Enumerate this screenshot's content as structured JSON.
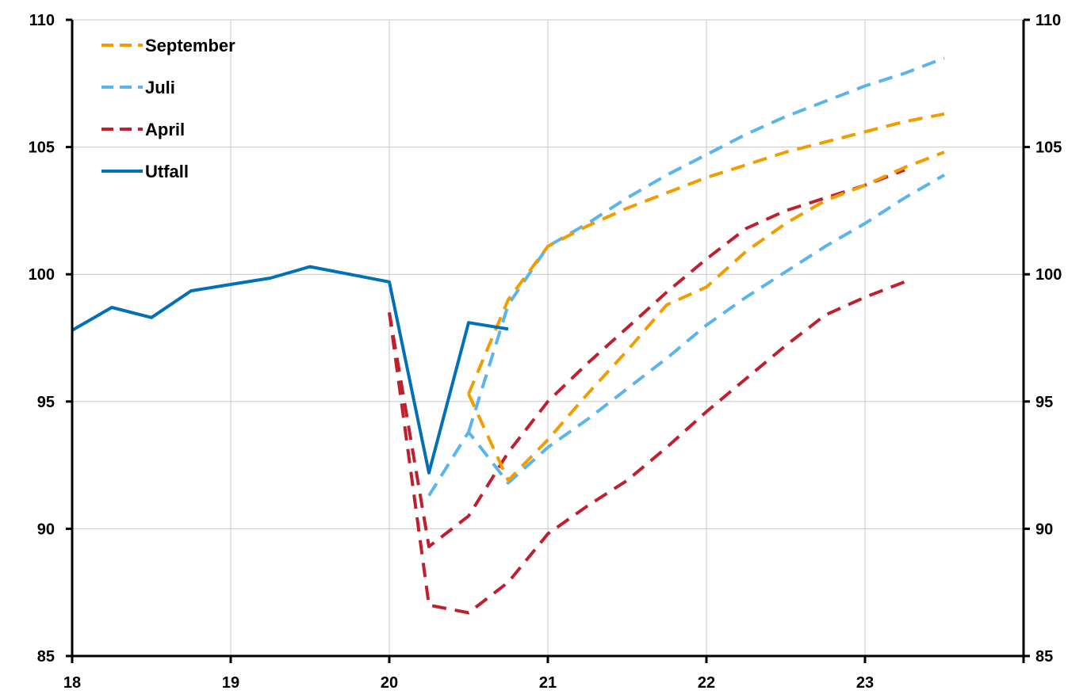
{
  "chart_data": {
    "type": "line",
    "title": "",
    "xlabel": "",
    "ylabel": "",
    "xlim": [
      18,
      24
    ],
    "ylim": [
      85,
      110
    ],
    "x_ticks": [
      18,
      19,
      20,
      21,
      22,
      23
    ],
    "x_tick_labels": [
      "18",
      "19",
      "20",
      "21",
      "22",
      "23"
    ],
    "y_ticks": [
      85,
      90,
      95,
      100,
      105,
      110
    ],
    "y_tick_labels": [
      "85",
      "90",
      "95",
      "100",
      "105",
      "110"
    ],
    "grid": true,
    "legend_position": "top-left",
    "legend_order": [
      "September",
      "Juli",
      "April",
      "Utfall"
    ],
    "series": [
      {
        "name": "Utfall",
        "color": "#0070b8",
        "style": "solid",
        "points": [
          [
            18.0,
            97.8
          ],
          [
            18.25,
            98.7
          ],
          [
            18.5,
            98.3
          ],
          [
            18.75,
            99.35
          ],
          [
            19.0,
            99.6
          ],
          [
            19.25,
            99.85
          ],
          [
            19.5,
            100.3
          ],
          [
            19.75,
            100.0
          ],
          [
            20.0,
            99.7
          ],
          [
            20.25,
            92.2
          ],
          [
            20.5,
            98.1
          ],
          [
            20.75,
            97.85
          ]
        ]
      },
      {
        "name": "September",
        "color": "#f39c00",
        "style": "dashed",
        "segments": [
          [
            [
              20.5,
              95.3
            ],
            [
              20.75,
              91.9
            ],
            [
              21.0,
              93.5
            ],
            [
              21.25,
              95.3
            ],
            [
              21.5,
              97.0
            ],
            [
              21.75,
              98.8
            ],
            [
              22.0,
              99.5
            ],
            [
              22.25,
              100.9
            ],
            [
              22.5,
              102.0
            ],
            [
              22.75,
              102.9
            ],
            [
              23.0,
              103.5
            ],
            [
              23.25,
              104.2
            ],
            [
              23.5,
              104.8
            ]
          ],
          [
            [
              20.5,
              95.3
            ],
            [
              20.75,
              99.0
            ],
            [
              21.0,
              101.1
            ],
            [
              21.25,
              101.9
            ],
            [
              21.5,
              102.6
            ],
            [
              21.75,
              103.2
            ],
            [
              22.0,
              103.8
            ],
            [
              22.25,
              104.3
            ],
            [
              22.5,
              104.8
            ],
            [
              22.75,
              105.2
            ],
            [
              23.0,
              105.6
            ],
            [
              23.25,
              106.0
            ],
            [
              23.5,
              106.3
            ]
          ]
        ]
      },
      {
        "name": "Juli",
        "color": "#5ab4ee",
        "style": "dashed",
        "segments": [
          [
            [
              20.25,
              91.3
            ],
            [
              20.5,
              93.8
            ],
            [
              20.75,
              91.8
            ],
            [
              21.0,
              93.2
            ],
            [
              21.25,
              94.3
            ],
            [
              21.5,
              95.5
            ],
            [
              21.75,
              96.7
            ],
            [
              22.0,
              98.0
            ],
            [
              22.25,
              99.1
            ],
            [
              22.5,
              100.1
            ],
            [
              22.75,
              101.1
            ],
            [
              23.0,
              102.0
            ],
            [
              23.25,
              103.0
            ],
            [
              23.5,
              103.9
            ]
          ],
          [
            [
              20.5,
              93.8
            ],
            [
              20.75,
              98.8
            ],
            [
              21.0,
              101.1
            ],
            [
              21.25,
              102.0
            ],
            [
              21.5,
              103.0
            ],
            [
              21.75,
              103.9
            ],
            [
              22.0,
              104.7
            ],
            [
              22.25,
              105.5
            ],
            [
              22.5,
              106.2
            ],
            [
              22.75,
              106.8
            ],
            [
              23.0,
              107.4
            ],
            [
              23.25,
              107.9
            ],
            [
              23.5,
              108.5
            ]
          ]
        ]
      },
      {
        "name": "April",
        "color": "#c0202e",
        "style": "dashed",
        "segments": [
          [
            [
              20.0,
              98.5
            ],
            [
              20.25,
              89.3
            ],
            [
              20.5,
              90.5
            ],
            [
              20.75,
              93.0
            ],
            [
              21.0,
              95.0
            ],
            [
              21.25,
              96.5
            ],
            [
              21.5,
              97.9
            ],
            [
              21.75,
              99.3
            ],
            [
              22.0,
              100.6
            ],
            [
              22.25,
              101.8
            ],
            [
              22.5,
              102.5
            ],
            [
              22.75,
              103.0
            ],
            [
              23.0,
              103.5
            ],
            [
              23.25,
              104.1
            ]
          ],
          [
            [
              20.0,
              98.5
            ],
            [
              20.25,
              87.0
            ],
            [
              20.5,
              86.7
            ],
            [
              20.75,
              87.9
            ],
            [
              21.0,
              89.8
            ],
            [
              21.25,
              90.9
            ],
            [
              21.5,
              91.9
            ],
            [
              21.75,
              93.2
            ],
            [
              22.0,
              94.6
            ],
            [
              22.25,
              95.9
            ],
            [
              22.5,
              97.2
            ],
            [
              22.75,
              98.4
            ],
            [
              23.0,
              99.1
            ],
            [
              23.25,
              99.7
            ]
          ]
        ]
      }
    ]
  }
}
